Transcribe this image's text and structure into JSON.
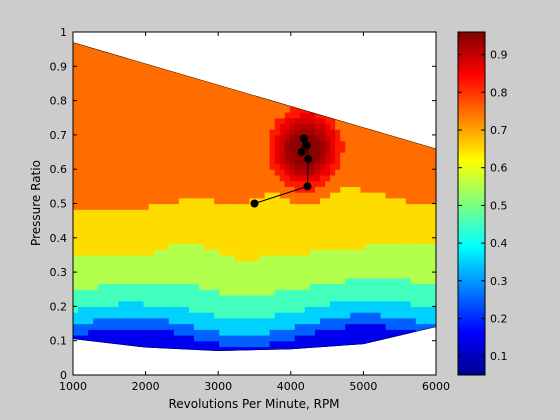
{
  "chart_data": {
    "type": "contourf",
    "title": "",
    "xlabel": "Revolutions Per Minute, RPM",
    "ylabel": "Pressure Ratio",
    "xlim": [
      1000,
      6000
    ],
    "ylim": [
      0,
      1
    ],
    "x_ticks": [
      "1000",
      "2000",
      "3000",
      "4000",
      "5000",
      "6000"
    ],
    "y_ticks": [
      "0",
      "0.1",
      "0.2",
      "0.3",
      "0.4",
      "0.5",
      "0.6",
      "0.7",
      "0.8",
      "0.9",
      "1"
    ],
    "colorbar": {
      "range": [
        0.05,
        0.96
      ],
      "colormap": "jet",
      "ticks": [
        "0.1",
        "0.2",
        "0.3",
        "0.4",
        "0.5",
        "0.6",
        "0.7",
        "0.8",
        "0.9"
      ]
    },
    "region_boundary": {
      "top": [
        [
          1000,
          0.97
        ],
        [
          6000,
          0.66
        ]
      ],
      "bottom": [
        [
          1000,
          0.105
        ],
        [
          2000,
          0.08
        ],
        [
          3000,
          0.07
        ],
        [
          4000,
          0.075
        ],
        [
          5000,
          0.09
        ],
        [
          6000,
          0.14
        ]
      ]
    },
    "contour_levels": [
      0.1,
      0.2,
      0.3,
      0.4,
      0.5,
      0.6,
      0.7,
      0.8,
      0.85,
      0.88,
      0.9,
      0.92,
      0.94
    ],
    "trajectory": [
      {
        "x": 3500,
        "y": 0.5
      },
      {
        "x": 4230,
        "y": 0.55
      },
      {
        "x": 4240,
        "y": 0.63
      },
      {
        "x": 4220,
        "y": 0.67
      },
      {
        "x": 4180,
        "y": 0.69
      },
      {
        "x": 4150,
        "y": 0.65
      }
    ]
  }
}
